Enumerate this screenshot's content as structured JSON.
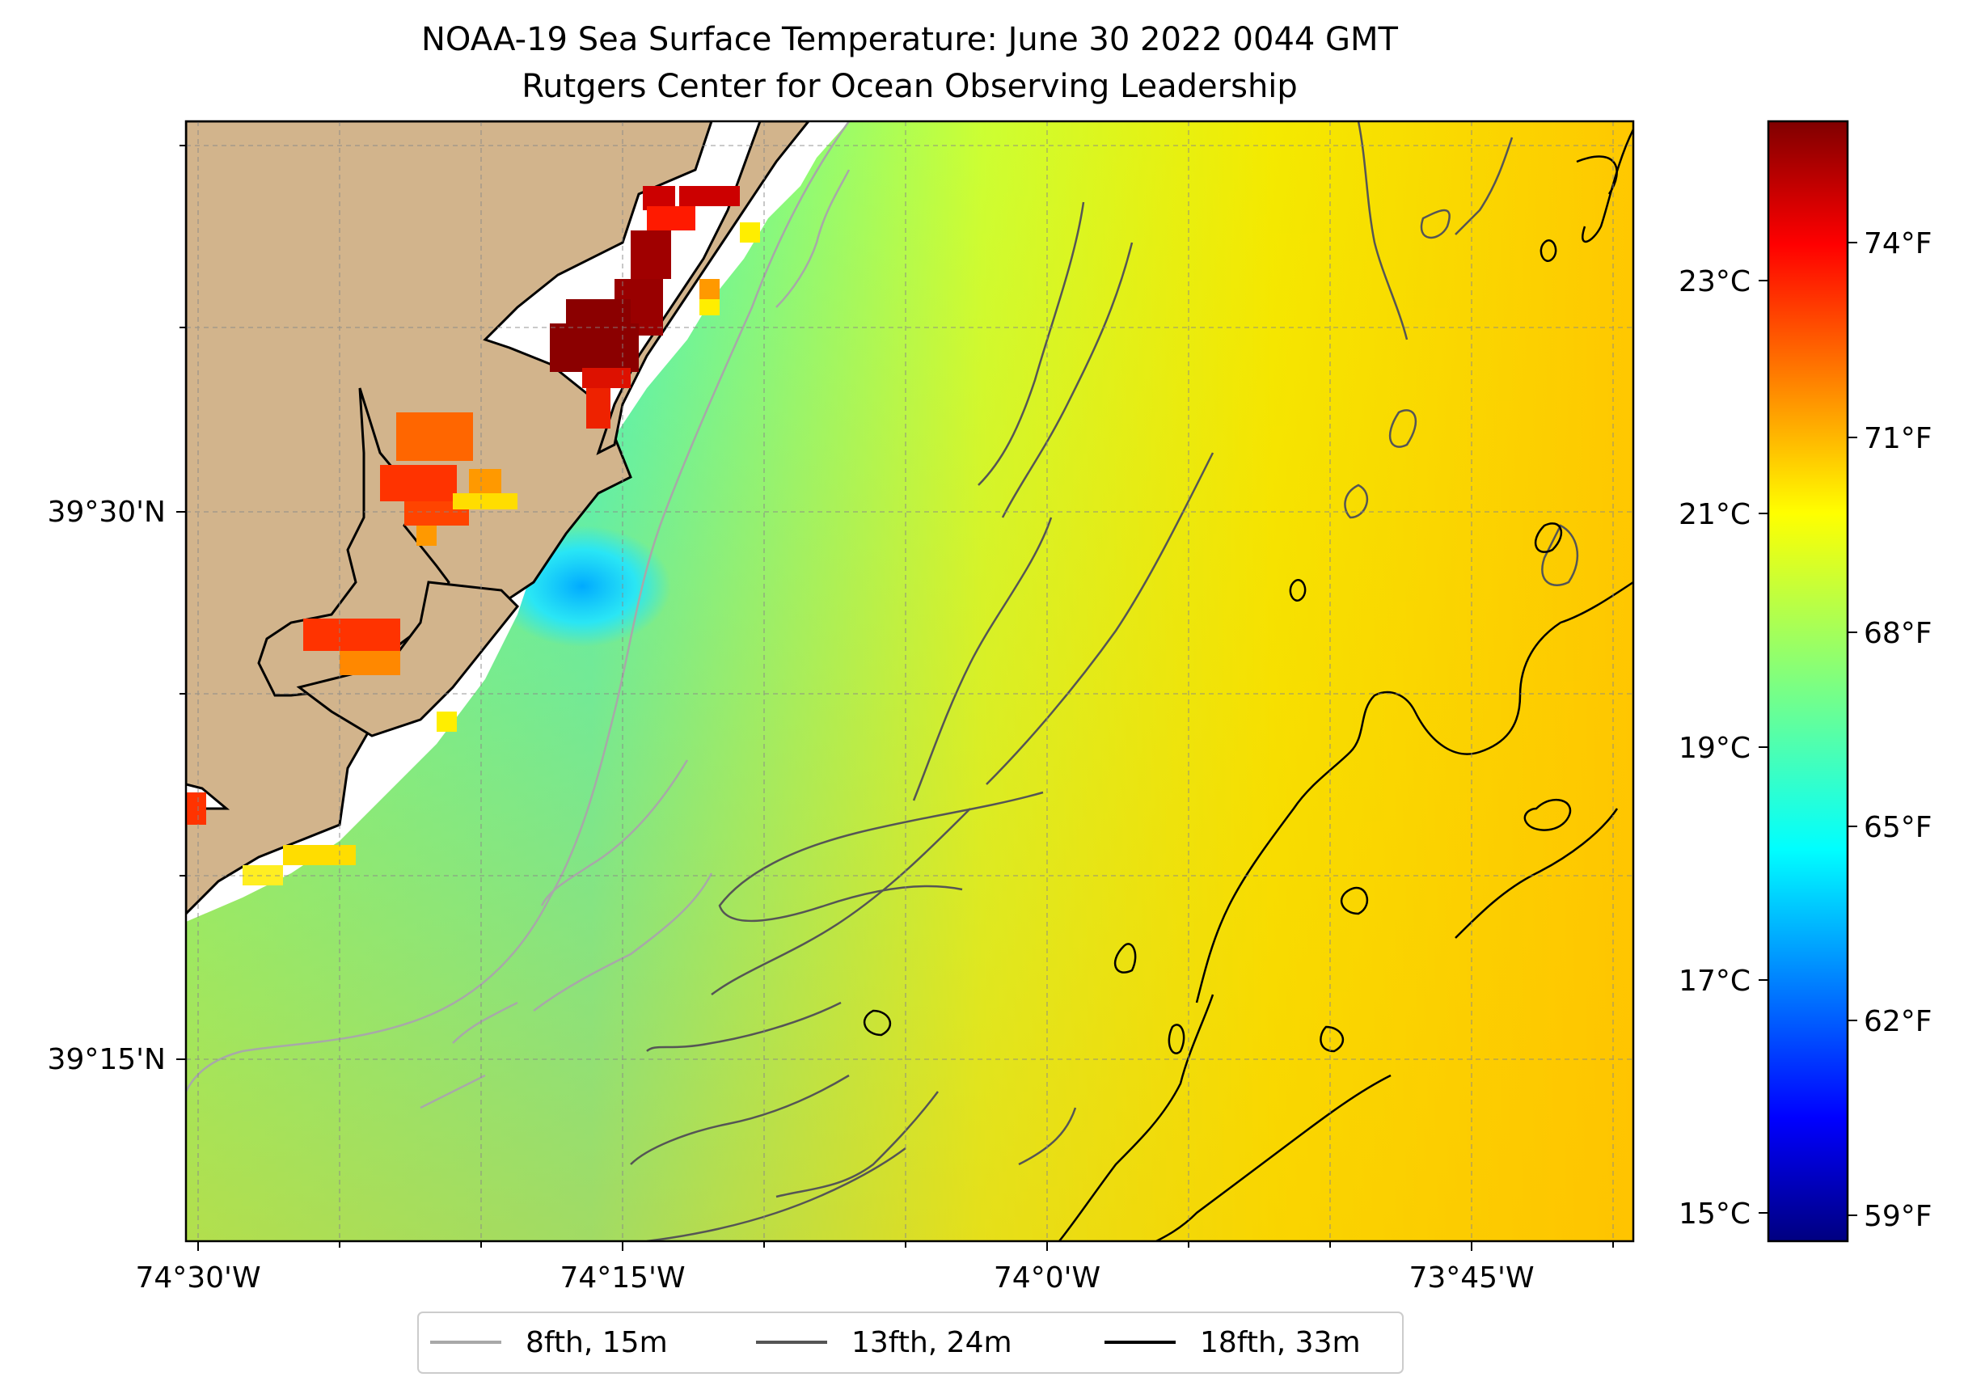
{
  "title": {
    "line1": "NOAA-19 Sea Surface Temperature: June 30 2022 0044 GMT",
    "line2": "Rutgers Center for Ocean Observing Leadership"
  },
  "map": {
    "lon_labels": [
      "74°30'W",
      "74°15'W",
      "74°0'W",
      "73°45'W"
    ],
    "lat_labels": [
      "39°30'N",
      "39°15'N"
    ],
    "colors": {
      "land": "#d2b48c",
      "coast": "#000000"
    }
  },
  "colorbar": {
    "celsius_labels": [
      "23°C",
      "21°C",
      "19°C",
      "17°C",
      "15°C"
    ],
    "fahrenheit_labels": [
      "74°F",
      "71°F",
      "68°F",
      "65°F",
      "62°F",
      "59°F"
    ],
    "colormap": "jet"
  },
  "legend": {
    "items": [
      {
        "label": "8fth, 15m",
        "color": "#a8a8a8"
      },
      {
        "label": "13fth, 24m",
        "color": "#555555"
      },
      {
        "label": "18fth, 33m",
        "color": "#000000"
      }
    ]
  }
}
